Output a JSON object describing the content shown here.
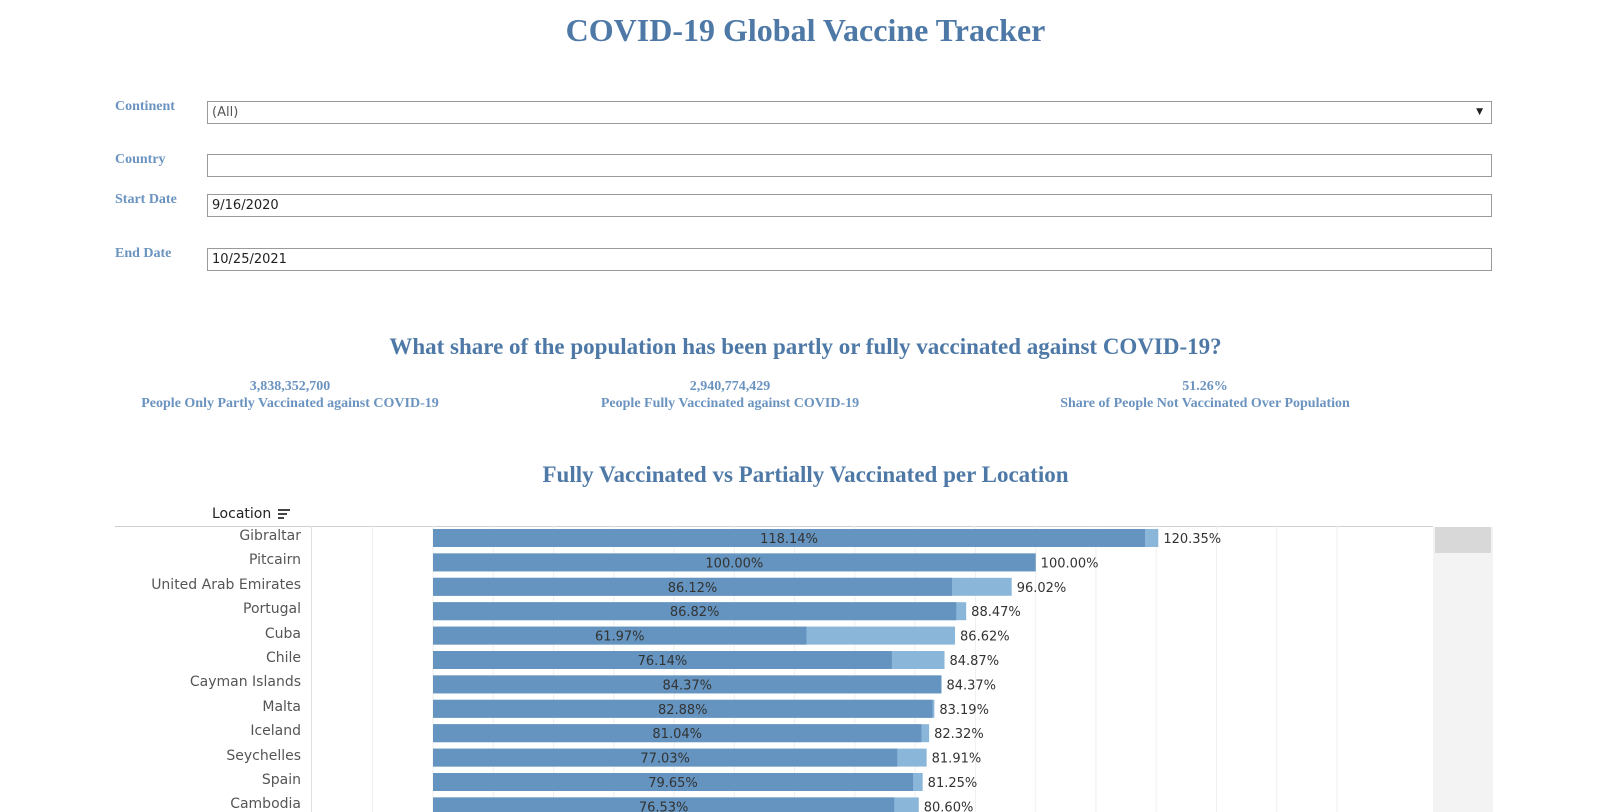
{
  "page": {
    "title": "COVID-19 Global Vaccine Tracker"
  },
  "filters": {
    "continent": {
      "label": "Continent",
      "value": "(All)"
    },
    "country": {
      "label": "Country",
      "value": ""
    },
    "start_date": {
      "label": "Start Date",
      "value": "9/16/2020"
    },
    "end_date": {
      "label": "End Date",
      "value": "10/25/2021"
    }
  },
  "kpi_section": {
    "title": "What share of the population has been partly or fully vaccinated against COVID-19?",
    "items": [
      {
        "value": "3,838,352,700",
        "label": "People Only Partly Vaccinated against COVID-19"
      },
      {
        "value": "2,940,774,429",
        "label": "People Fully Vaccinated against COVID-19"
      },
      {
        "value": "51.26%",
        "label": "Share of People Not Vaccinated Over Population"
      }
    ]
  },
  "chart_section": {
    "title": "Fully Vaccinated vs Partially Vaccinated per Location",
    "location_header": "Location"
  },
  "colors": {
    "title": "#4e79a7",
    "label": "#6a93c0",
    "fully_bar": "#6494bf",
    "partial_bar": "#8ab6da"
  },
  "chart_data": {
    "type": "bar",
    "orientation": "horizontal",
    "stacked": "overlay",
    "categories": [
      "Gibraltar",
      "Pitcairn",
      "United Arab Emirates",
      "Portugal",
      "Cuba",
      "Chile",
      "Cayman Islands",
      "Malta",
      "Iceland",
      "Seychelles",
      "Spain",
      "Cambodia"
    ],
    "series": [
      {
        "values": [
          118.14,
          100.0,
          86.12,
          86.82,
          61.97,
          76.14,
          84.37,
          82.88,
          81.04,
          77.03,
          79.65,
          76.53
        ]
      },
      {
        "values": [
          120.35,
          100.0,
          96.02,
          88.47,
          86.62,
          84.87,
          84.37,
          83.19,
          82.32,
          81.91,
          81.25,
          80.6
        ]
      }
    ],
    "inner_labels": [
      "118.14%",
      "100.00%",
      "86.12%",
      "86.82%",
      "61.97%",
      "76.14%",
      "84.37%",
      "82.88%",
      "81.04%",
      "77.03%",
      "79.65%",
      "76.53%"
    ],
    "outer_labels": [
      "120.35%",
      "100.00%",
      "96.02%",
      "88.47%",
      "86.62%",
      "84.87%",
      "84.37%",
      "83.19%",
      "82.32%",
      "81.91%",
      "81.25%",
      "80.60%"
    ],
    "xlim": [
      -20,
      170
    ],
    "grid": true,
    "xlabel": "",
    "ylabel": "Location"
  }
}
